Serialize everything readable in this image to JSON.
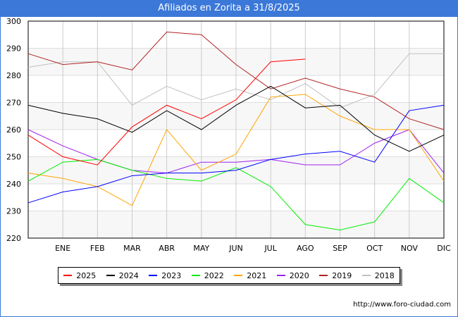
{
  "title": "Afiliados en Zorita a 31/8/2025",
  "footer_url": "http://www.foro-ciudad.com",
  "chart_data": {
    "type": "line",
    "title": "Afiliados en Zorita a 31/8/2025",
    "categories": [
      "",
      "ENE",
      "FEB",
      "MAR",
      "ABR",
      "MAY",
      "JUN",
      "JUL",
      "AGO",
      "SEP",
      "OCT",
      "NOV",
      "DIC"
    ],
    "ylim": [
      220,
      300
    ],
    "yticks": [
      220,
      230,
      240,
      250,
      260,
      270,
      280,
      290,
      300
    ],
    "grid": true,
    "legend_position": "bottom",
    "series": [
      {
        "name": "2025",
        "color": "#ff0000",
        "values": [
          258,
          250,
          247,
          261,
          269,
          264,
          271,
          285,
          286,
          null,
          null,
          null,
          null
        ]
      },
      {
        "name": "2024",
        "color": "#000000",
        "values": [
          269,
          266,
          264,
          259,
          267,
          260,
          269,
          276,
          268,
          269,
          258,
          252,
          258
        ]
      },
      {
        "name": "2023",
        "color": "#0000ff",
        "values": [
          233,
          237,
          239,
          243,
          244,
          244,
          245,
          249,
          251,
          252,
          248,
          267,
          269
        ]
      },
      {
        "name": "2022",
        "color": "#00ee00",
        "values": [
          241,
          248,
          249,
          245,
          242,
          241,
          246,
          239,
          225,
          223,
          226,
          242,
          233
        ]
      },
      {
        "name": "2021",
        "color": "#ffa500",
        "values": [
          244,
          242,
          239,
          232,
          260,
          245,
          251,
          272,
          273,
          265,
          260,
          260,
          241
        ]
      },
      {
        "name": "2020",
        "color": "#a020f0",
        "values": [
          260,
          254,
          249,
          245,
          244,
          248,
          248,
          249,
          247,
          247,
          255,
          260,
          244
        ]
      },
      {
        "name": "2019",
        "color": "#b22222",
        "values": [
          288,
          284,
          285,
          282,
          296,
          295,
          284,
          275,
          279,
          275,
          272,
          264,
          260
        ]
      },
      {
        "name": "2018",
        "color": "#c0c0c0",
        "values": [
          283,
          285,
          285,
          269,
          276,
          271,
          275,
          271,
          277,
          268,
          273,
          288,
          288
        ]
      }
    ]
  }
}
